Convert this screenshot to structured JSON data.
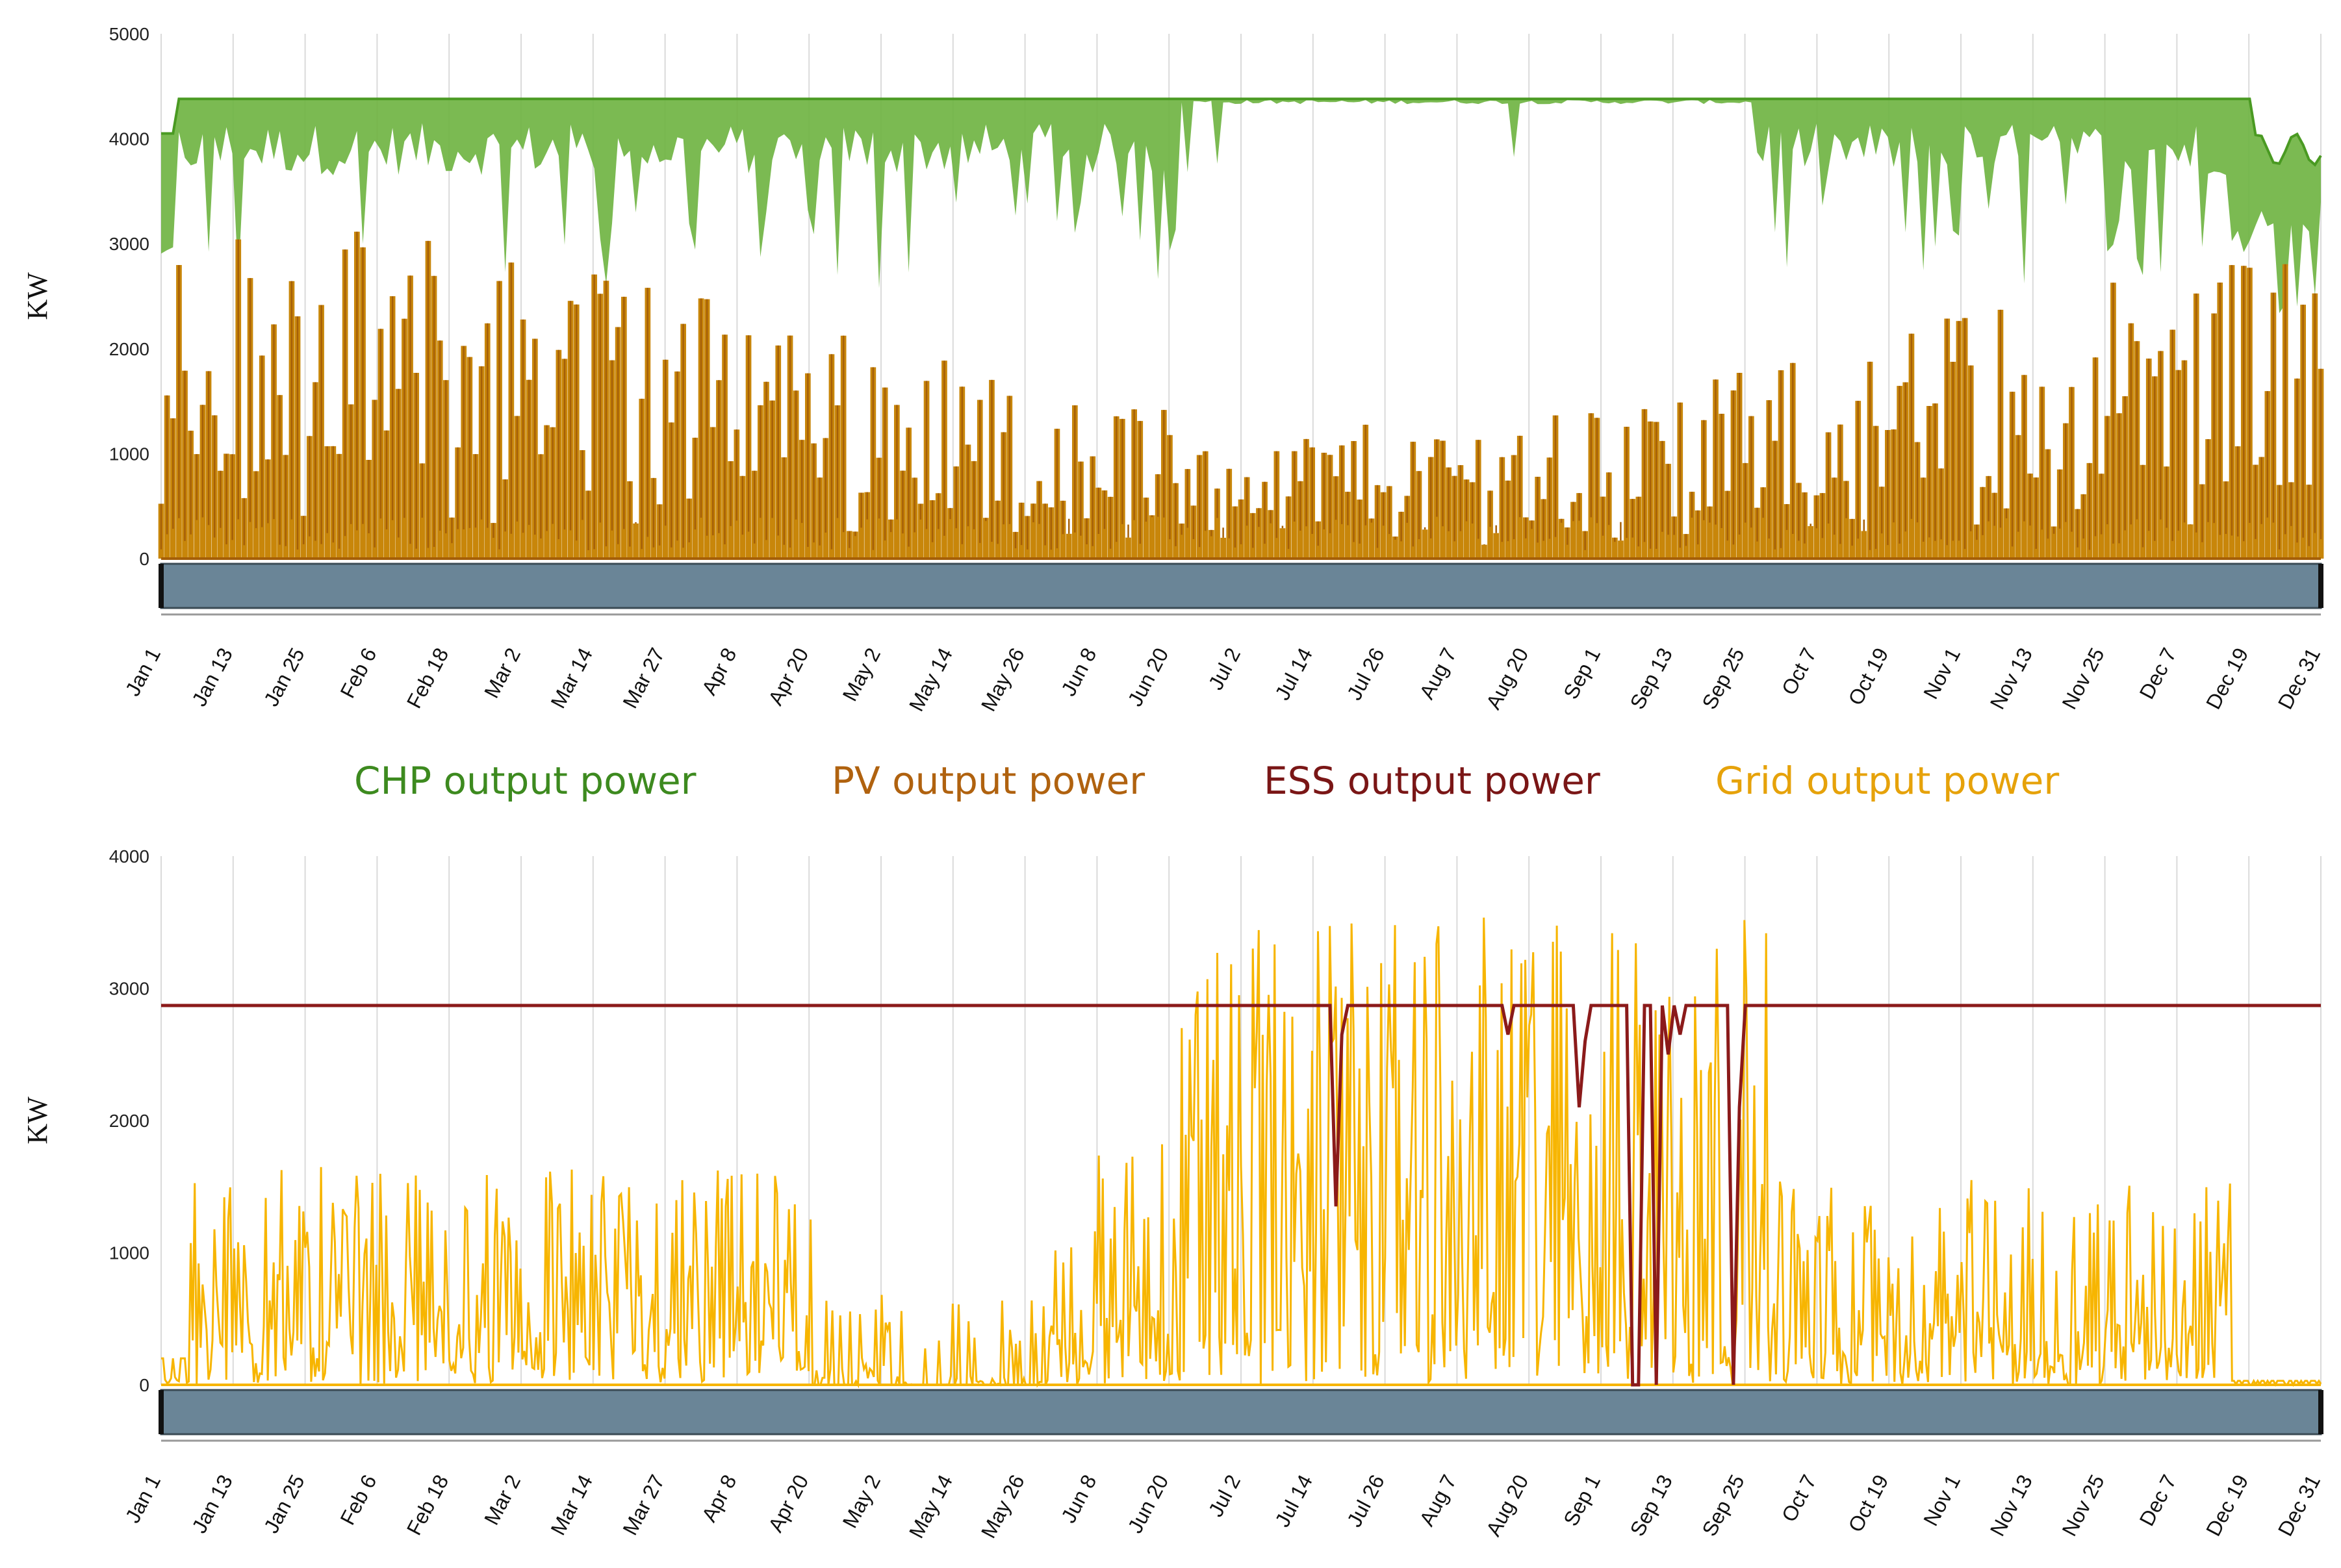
{
  "colors": {
    "chp": "#6db33f",
    "chp_line": "#4a9a22",
    "pv": "#c8860a",
    "pv_dark": "#a55f08",
    "ess": "#8b1a1a",
    "grid": "#f7b500",
    "navigator": "#6a8597",
    "gridline": "#dadada"
  },
  "legend": [
    {
      "label": "CHP output power",
      "color": "#3d8a1f"
    },
    {
      "label": "PV output power",
      "color": "#b0620f"
    },
    {
      "label": "ESS output power",
      "color": "#7a1616"
    },
    {
      "label": "Grid output power",
      "color": "#e6a20a"
    }
  ],
  "chart_data": [
    {
      "type": "area",
      "title": "",
      "ylabel": "KW",
      "xlabel": "",
      "ylim": [
        0,
        5000
      ],
      "yticks": [
        "0",
        "1000",
        "2000",
        "3000",
        "4000",
        "5000"
      ],
      "xticks": [
        "Jan 1",
        "Jan 13",
        "Jan 25",
        "Feb 6",
        "Feb 18",
        "Mar 2",
        "Mar 14",
        "Mar 27",
        "Apr 8",
        "Apr 20",
        "May 2",
        "May 14",
        "May 26",
        "Jun 8",
        "Jun 20",
        "Jul 2",
        "Jul 14",
        "Jul 26",
        "Aug 7",
        "Aug 20",
        "Sep 1",
        "Sep 13",
        "Sep 25",
        "Oct 7",
        "Oct 19",
        "Nov 1",
        "Nov 13",
        "Nov 25",
        "Dec 7",
        "Dec 19",
        "Dec 31"
      ],
      "series": [
        {
          "name": "CHP output power",
          "description_values": {
            "max": 4380,
            "typical_min": 3700,
            "deep_dips_to": 2200
          }
        },
        {
          "name": "PV output power",
          "description_values": {
            "max": 3200,
            "typical_peak": 2600,
            "baseline": 200
          }
        }
      ]
    },
    {
      "type": "line",
      "title": "",
      "ylabel": "KW",
      "xlabel": "",
      "ylim": [
        0,
        4000
      ],
      "yticks": [
        "0",
        "1000",
        "2000",
        "3000",
        "4000"
      ],
      "xticks": [
        "Jan 1",
        "Jan 13",
        "Jan 25",
        "Feb 6",
        "Feb 18",
        "Mar 2",
        "Mar 14",
        "Mar 27",
        "Apr 8",
        "Apr 20",
        "May 2",
        "May 14",
        "May 26",
        "Jun 8",
        "Jun 20",
        "Jul 2",
        "Jul 14",
        "Jul 26",
        "Aug 7",
        "Aug 20",
        "Sep 1",
        "Sep 13",
        "Sep 25",
        "Oct 7",
        "Oct 19",
        "Nov 1",
        "Nov 13",
        "Nov 25",
        "Dec 7",
        "Dec 19",
        "Dec 31"
      ],
      "series": [
        {
          "name": "ESS output power",
          "description_values": {
            "constant": 2870,
            "dips_to": 0
          }
        },
        {
          "name": "Grid output power",
          "description_values": {
            "winter_peak": 1700,
            "summer_peak": 3550,
            "baseline": 0
          }
        }
      ]
    }
  ]
}
